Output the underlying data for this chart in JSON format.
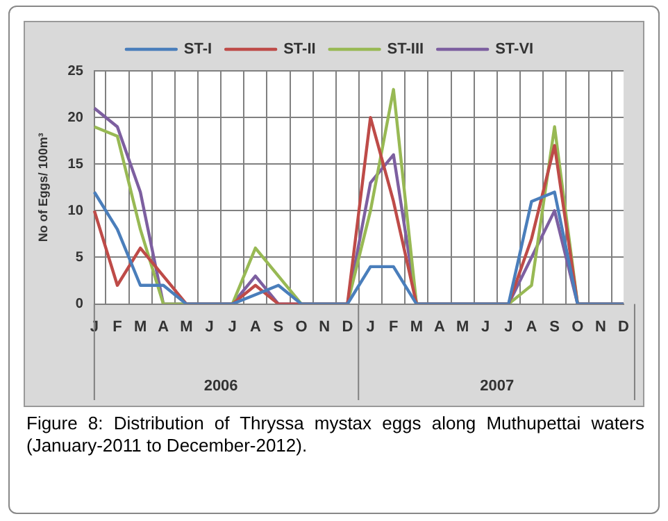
{
  "chart_data": {
    "type": "line",
    "ylabel": "No of Eggs/ 100m³",
    "categories": [
      "J",
      "F",
      "M",
      "A",
      "M",
      "J",
      "J",
      "A",
      "S",
      "O",
      "N",
      "D",
      "J",
      "F",
      "M",
      "A",
      "M",
      "J",
      "J",
      "A",
      "S",
      "O",
      "N",
      "D"
    ],
    "series": [
      {
        "name": "ST-I",
        "color": "#4a7ebb",
        "values": [
          12,
          8,
          2,
          2,
          0,
          0,
          0,
          1,
          2,
          0,
          0,
          0,
          4,
          4,
          0,
          0,
          0,
          0,
          0,
          11,
          12,
          0,
          0,
          0
        ]
      },
      {
        "name": "ST-II",
        "color": "#be4b48",
        "values": [
          10,
          2,
          6,
          3,
          0,
          0,
          0,
          2,
          0,
          0,
          0,
          0,
          20,
          11,
          0,
          0,
          0,
          0,
          0,
          7,
          17,
          0,
          0,
          0
        ]
      },
      {
        "name": "ST-III",
        "color": "#98b954",
        "values": [
          19,
          18,
          8,
          0,
          0,
          0,
          0,
          6,
          3,
          0,
          0,
          0,
          10,
          23,
          0,
          0,
          0,
          0,
          0,
          2,
          19,
          0,
          0,
          0
        ]
      },
      {
        "name": "ST-VI",
        "color": "#7d5fa0",
        "values": [
          21,
          19,
          12,
          0,
          0,
          0,
          0,
          3,
          0,
          0,
          0,
          0,
          13,
          16,
          0,
          0,
          0,
          0,
          0,
          5,
          10,
          0,
          0,
          0
        ]
      }
    ],
    "ylim": [
      0,
      25
    ],
    "yticks": [
      0,
      5,
      10,
      15,
      20,
      25
    ],
    "grid": true,
    "legend": "top",
    "marker": "none",
    "line_style": "solid",
    "annotations": [
      "2006",
      "2007",
      "Figure 8: Distribution of Thryssa mystax eggs along Muthupettai waters (January-2011 to December-2012)."
    ]
  }
}
